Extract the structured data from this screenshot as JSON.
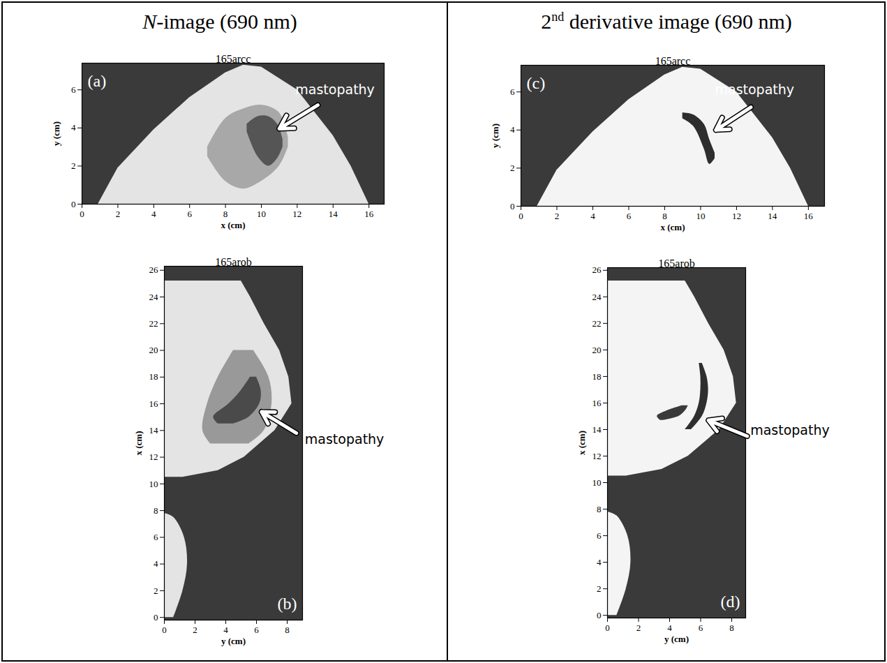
{
  "headers": [
    "N-image (690 nm)",
    "2nd derivative image (690 nm)"
  ],
  "chart_data": [
    {
      "type": "image",
      "panel": "(a)",
      "title": "165arcc",
      "x_label": "x (cm)",
      "y_label": "y (cm)",
      "xlim": [
        0,
        16.85
      ],
      "ylim": [
        0,
        7.4
      ],
      "xticks": [
        0,
        2,
        4,
        6,
        8,
        10,
        12,
        14,
        16
      ],
      "yticks": [
        0,
        2,
        4,
        6
      ],
      "color": "#3a3a3a",
      "series": [
        {
          "color": "#e4e4e4",
          "x": [
            0.9,
            2,
            4,
            6,
            8,
            9,
            10,
            12,
            14,
            15,
            16
          ],
          "y1": [
            0,
            0,
            0,
            0,
            0,
            0,
            0,
            0,
            0,
            0,
            0
          ],
          "y2": [
            0,
            1.9,
            3.9,
            5.6,
            6.9,
            7.3,
            7.2,
            6.0,
            3.6,
            2.0,
            0
          ]
        },
        {
          "color": "#a8a8a8",
          "x": [
            7,
            8,
            9,
            10,
            11,
            11.5
          ],
          "y1": [
            2.5,
            1.2,
            0.8,
            1.2,
            2.0,
            3.0
          ],
          "y2": [
            3.0,
            4.5,
            5.0,
            5.2,
            4.8,
            3.5
          ]
        },
        {
          "color": "#555555",
          "x": [
            9.2,
            9.8,
            10.4,
            10.9,
            11.2
          ],
          "y1": [
            3.8,
            2.5,
            2.0,
            2.4,
            3.0
          ],
          "y2": [
            4.2,
            4.6,
            4.6,
            4.2,
            3.4
          ]
        }
      ],
      "annotations": [
        {
          "text": "mastopathy",
          "x": 11.9,
          "y": 6.0,
          "arrow": {
            "x1": 13.15,
            "y1": 5.2,
            "x2": 11.0,
            "y2": 3.96
          }
        }
      ]
    },
    {
      "type": "image",
      "panel": "(b)",
      "title": "165arob",
      "x_label": "y (cm)",
      "y_label": "x (cm)",
      "xlim": [
        0,
        9
      ],
      "ylim": [
        -0.2,
        26.3
      ],
      "xticks": [
        0,
        2,
        4,
        6,
        8
      ],
      "yticks": [
        0,
        2,
        4,
        6,
        8,
        10,
        12,
        14,
        16,
        18,
        20,
        22,
        24,
        26
      ],
      "color": "#3a3a3a",
      "series": [
        {
          "color": "#e4e4e4",
          "y": [
            10.5,
            11,
            12,
            14,
            16,
            18,
            20,
            22,
            24,
            25.2
          ],
          "x1": [
            0,
            0,
            0,
            0,
            0,
            0,
            0,
            0,
            0,
            0
          ],
          "x2": [
            1.2,
            3.5,
            5.2,
            7.2,
            8.3,
            8.1,
            7.5,
            6.5,
            5.6,
            5.0
          ]
        },
        {
          "color": "#e4e4e4",
          "y": [
            0,
            2,
            4,
            6,
            7.5,
            7.8
          ],
          "x1": [
            0,
            0,
            0,
            0,
            0,
            0
          ],
          "x2": [
            0.6,
            1.2,
            1.5,
            1.3,
            0.6,
            0
          ]
        },
        {
          "color": "#999999",
          "y": [
            13,
            14,
            16,
            18,
            20
          ],
          "x1": [
            3.0,
            2.5,
            2.8,
            3.5,
            4.5
          ],
          "x2": [
            5.5,
            6.5,
            7.0,
            6.8,
            5.8
          ]
        },
        {
          "color": "#4a4a4a",
          "y": [
            14.5,
            15,
            16,
            17,
            18
          ],
          "x1": [
            3.5,
            3.2,
            4.2,
            5.0,
            5.6
          ],
          "x2": [
            4.5,
            5.5,
            6.2,
            6.3,
            6.0
          ]
        }
      ],
      "annotations": [
        {
          "text": "mastopathy",
          "x": 9.15,
          "y": 13.3,
          "arrow": {
            "x1": 8.6,
            "y1": 13.8,
            "x2": 6.33,
            "y2": 15.4
          }
        }
      ]
    },
    {
      "type": "image",
      "panel": "(c)",
      "title": "165arcc",
      "x_label": "x (cm)",
      "y_label": "y (cm)",
      "xlim": [
        0,
        16.9
      ],
      "ylim": [
        0,
        7.4
      ],
      "xticks": [
        0,
        2,
        4,
        6,
        8,
        10,
        12,
        14,
        16
      ],
      "yticks": [
        0,
        2,
        4,
        6
      ],
      "color": "#3a3a3a",
      "series": [
        {
          "color": "#f4f4f4",
          "x": [
            0.9,
            2,
            4,
            6,
            8,
            9,
            10,
            12,
            14,
            15,
            16
          ],
          "y1": [
            0,
            0,
            0,
            0,
            0,
            0,
            0,
            0,
            0,
            0,
            0
          ],
          "y2": [
            0,
            1.9,
            3.9,
            5.6,
            6.9,
            7.3,
            7.2,
            6.0,
            3.6,
            2.0,
            0
          ]
        },
        {
          "color": "#2e2e2e",
          "x": [
            9.0,
            9.6,
            10.2,
            10.5,
            10.8
          ],
          "y1": [
            4.6,
            4.2,
            3.0,
            2.2,
            2.5
          ],
          "y2": [
            4.9,
            4.8,
            4.3,
            3.5,
            2.8
          ]
        }
      ],
      "annotations": [
        {
          "text": "mastopathy",
          "x": 10.8,
          "y": 6.1,
          "arrow": {
            "x1": 12.8,
            "y1": 5.2,
            "x2": 10.85,
            "y2": 4.0
          }
        }
      ]
    },
    {
      "type": "image",
      "panel": "(d)",
      "title": "165arob",
      "x_label": "y (cm)",
      "y_label": "x (cm)",
      "xlim": [
        0,
        8.9
      ],
      "ylim": [
        -0.2,
        26.2
      ],
      "xticks": [
        0,
        2,
        4,
        6,
        8
      ],
      "yticks": [
        0,
        2,
        4,
        6,
        8,
        10,
        12,
        14,
        16,
        18,
        20,
        22,
        24,
        26
      ],
      "color": "#3a3a3a",
      "series": [
        {
          "color": "#f4f4f4",
          "y": [
            10.5,
            11,
            12,
            14,
            16,
            18,
            20,
            22,
            24,
            25.2
          ],
          "x1": [
            0,
            0,
            0,
            0,
            0,
            0,
            0,
            0,
            0,
            0
          ],
          "x2": [
            1.2,
            3.5,
            5.2,
            7.2,
            8.3,
            8.1,
            7.5,
            6.5,
            5.6,
            5.0
          ]
        },
        {
          "color": "#f4f4f4",
          "y": [
            0,
            2,
            4,
            6,
            7.5,
            7.8
          ],
          "x1": [
            0,
            0,
            0,
            0,
            0,
            0
          ],
          "x2": [
            0.6,
            1.2,
            1.5,
            1.3,
            0.6,
            0
          ]
        },
        {
          "color": "#2e2e2e",
          "y": [
            14,
            15,
            16,
            17,
            18,
            19
          ],
          "x1": [
            5.0,
            5.6,
            5.9,
            6.0,
            6.0,
            5.9
          ],
          "x2": [
            5.4,
            6.1,
            6.4,
            6.5,
            6.4,
            6.1
          ]
        },
        {
          "color": "#3a3a3a",
          "y": [
            14.7,
            15.0,
            15.4,
            15.8
          ],
          "x1": [
            3.4,
            3.2,
            3.8,
            4.8
          ],
          "x2": [
            3.6,
            4.6,
            5.0,
            5.2
          ]
        }
      ],
      "annotations": [
        {
          "text": "mastopathy",
          "x": 9.2,
          "y": 13.9,
          "arrow": {
            "x1": 9.0,
            "y1": 13.5,
            "x2": 6.5,
            "y2": 14.7
          }
        }
      ]
    }
  ]
}
